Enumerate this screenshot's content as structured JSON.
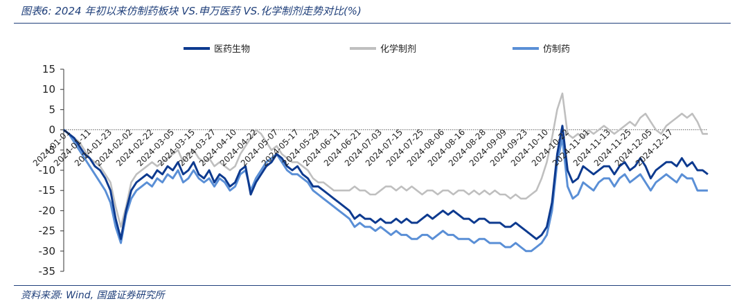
{
  "header": {
    "figure_title": "图表6:  2024 年初以来仿制药板块 VS.申万医药 VS.化学制剂走势对比(%)"
  },
  "footer": {
    "source": "资料来源:  Wind,  国盛证券研究所"
  },
  "colors": {
    "series_dark_blue": "#0d3a8f",
    "series_gray": "#bfbfbf",
    "series_light_blue": "#5a8fd6",
    "rule": "#1f3f7a"
  },
  "chart_data": {
    "type": "line",
    "title": "",
    "xlabel": "",
    "ylabel": "",
    "ylim": [
      -35,
      15
    ],
    "yticks": [
      15,
      10,
      5,
      0,
      -5,
      -10,
      -15,
      -20,
      -25,
      -30,
      -35
    ],
    "x_tick_labels": [
      "2024-01-01",
      "2024-01-11",
      "2024-01-23",
      "2024-02-02",
      "2024-02-22",
      "2024-03-05",
      "2024-03-15",
      "2024-03-27",
      "2024-04-10",
      "2024-04-22",
      "2024-05-07",
      "2024-05-17",
      "2024-05-29",
      "2024-06-11",
      "2024-06-21",
      "2024-07-03",
      "2024-07-15",
      "2024-07-25",
      "2024-08-06",
      "2024-08-16",
      "2024-08-28",
      "2024-09-09",
      "2024-09-23",
      "2024-10-10",
      "2024-10-22",
      "2024-11-01",
      "2024-11-13",
      "2024-11-25",
      "2024-12-05",
      "2024-12-17"
    ],
    "legend_position": "top",
    "grid": false,
    "series": [
      {
        "name": "医药生物",
        "color": "#0d3a8f",
        "values": [
          0,
          -1,
          -2,
          -4,
          -6,
          -7,
          -9,
          -10,
          -12,
          -15,
          -22,
          -27,
          -20,
          -15,
          -13,
          -12,
          -11,
          -12,
          -10,
          -11,
          -9,
          -10,
          -8,
          -11,
          -10,
          -8,
          -11,
          -12,
          -10,
          -13,
          -11,
          -12,
          -14,
          -13,
          -10,
          -9,
          -16,
          -13,
          -11,
          -9,
          -8,
          -6,
          -7,
          -9,
          -10,
          -9,
          -11,
          -12,
          -14,
          -14,
          -15,
          -16,
          -17,
          -18,
          -19,
          -20,
          -22,
          -21,
          -22,
          -22,
          -23,
          -22,
          -23,
          -23,
          -22,
          -23,
          -22,
          -23,
          -23,
          -22,
          -21,
          -22,
          -21,
          -20,
          -21,
          -20,
          -21,
          -22,
          -22,
          -23,
          -22,
          -22,
          -23,
          -23,
          -23,
          -24,
          -24,
          -23,
          -24,
          -25,
          -26,
          -27,
          -26,
          -24,
          -18,
          -6,
          1,
          -10,
          -13,
          -12,
          -9,
          -10,
          -11,
          -10,
          -9,
          -9,
          -11,
          -9,
          -8,
          -10,
          -9,
          -7,
          -9,
          -12,
          -10,
          -9,
          -8,
          -8,
          -9,
          -7,
          -9,
          -8,
          -10,
          -10,
          -11
        ]
      },
      {
        "name": "化学制剂",
        "color": "#bfbfbf",
        "values": [
          0,
          -1,
          -2,
          -3,
          -5,
          -7,
          -8,
          -9,
          -11,
          -13,
          -19,
          -24,
          -19,
          -13,
          -11,
          -10,
          -9,
          -8,
          -9,
          -8,
          -7,
          -6,
          -5,
          -8,
          -6,
          -5,
          -7,
          -8,
          -7,
          -9,
          -8,
          -9,
          -10,
          -9,
          -6,
          -4,
          -2,
          0,
          -1,
          -3,
          -5,
          -4,
          -6,
          -7,
          -8,
          -8,
          -9,
          -10,
          -12,
          -13,
          -13,
          -14,
          -15,
          -15,
          -15,
          -15,
          -14,
          -15,
          -15,
          -16,
          -16,
          -15,
          -14,
          -14,
          -15,
          -14,
          -15,
          -14,
          -15,
          -16,
          -15,
          -15,
          -16,
          -15,
          -15,
          -16,
          -15,
          -15,
          -16,
          -15,
          -16,
          -15,
          -16,
          -15,
          -16,
          -16,
          -17,
          -16,
          -17,
          -17,
          -16,
          -15,
          -12,
          -8,
          -2,
          5,
          9,
          -1,
          -2,
          -1,
          -2,
          0,
          -1,
          0,
          1,
          0,
          -1,
          0,
          1,
          2,
          1,
          3,
          4,
          2,
          0,
          -1,
          1,
          2,
          3,
          4,
          3,
          4,
          2,
          -1,
          -1
        ]
      },
      {
        "name": "仿制药",
        "color": "#5a8fd6",
        "values": [
          0,
          -1,
          -3,
          -5,
          -7,
          -9,
          -11,
          -13,
          -15,
          -18,
          -24,
          -28,
          -21,
          -17,
          -15,
          -14,
          -13,
          -14,
          -12,
          -13,
          -11,
          -12,
          -10,
          -13,
          -12,
          -10,
          -12,
          -13,
          -12,
          -14,
          -12,
          -13,
          -15,
          -14,
          -11,
          -10,
          -15,
          -12,
          -10,
          -8,
          -7,
          -6,
          -8,
          -10,
          -11,
          -11,
          -12,
          -13,
          -15,
          -16,
          -17,
          -18,
          -19,
          -20,
          -21,
          -22,
          -24,
          -23,
          -24,
          -24,
          -25,
          -24,
          -25,
          -26,
          -25,
          -26,
          -26,
          -27,
          -27,
          -26,
          -26,
          -27,
          -26,
          -25,
          -26,
          -26,
          -27,
          -27,
          -27,
          -28,
          -27,
          -27,
          -28,
          -28,
          -28,
          -29,
          -29,
          -28,
          -29,
          -30,
          -30,
          -29,
          -28,
          -26,
          -20,
          -8,
          -2,
          -14,
          -17,
          -16,
          -13,
          -14,
          -15,
          -13,
          -12,
          -12,
          -14,
          -12,
          -11,
          -13,
          -12,
          -11,
          -13,
          -15,
          -13,
          -12,
          -11,
          -12,
          -13,
          -11,
          -12,
          -12,
          -15,
          -15,
          -15
        ]
      }
    ]
  }
}
